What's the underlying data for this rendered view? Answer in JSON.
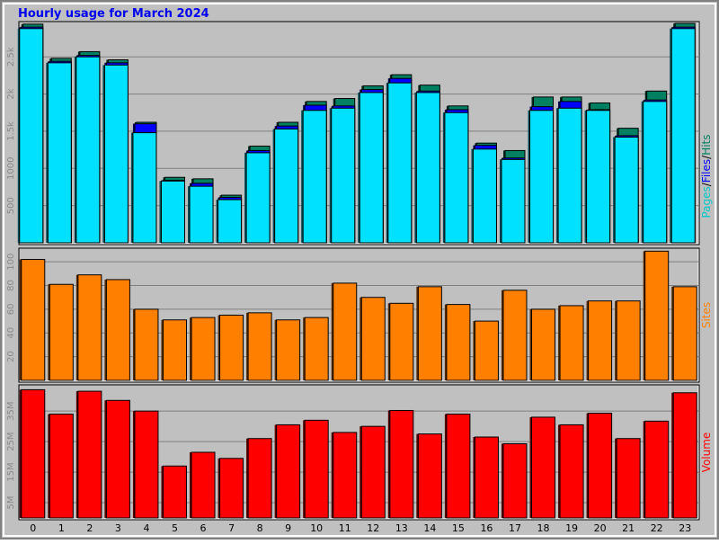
{
  "chart_data": {
    "type": "bar",
    "title": "Hourly usage for March 2024",
    "categories": [
      "0",
      "1",
      "2",
      "3",
      "4",
      "5",
      "6",
      "7",
      "8",
      "9",
      "10",
      "11",
      "12",
      "13",
      "14",
      "15",
      "16",
      "17",
      "18",
      "19",
      "20",
      "21",
      "22",
      "23"
    ],
    "panels": [
      {
        "id": "top",
        "ylabel_parts": [
          {
            "text": "Pages",
            "color": "#00c8c8"
          },
          {
            "text": "/",
            "color": "#000000"
          },
          {
            "text": "Files",
            "color": "#0000ff"
          },
          {
            "text": "/",
            "color": "#000000"
          },
          {
            "text": "Hits",
            "color": "#008060"
          }
        ],
        "yticks": [
          {
            "label": "500",
            "value": 500
          },
          {
            "label": "1000",
            "value": 1000
          },
          {
            "label": "1.5k",
            "value": 1500
          },
          {
            "label": "2k",
            "value": 2000
          },
          {
            "label": "2.5k",
            "value": 2500
          }
        ],
        "ylim": [
          0,
          2950
        ],
        "grid": true,
        "series": [
          {
            "name": "Hits",
            "color": "#008060",
            "values": [
              2940,
              2480,
              2570,
              2460,
              1620,
              880,
              860,
              640,
              1300,
              1620,
              1900,
              1940,
              2110,
              2260,
              2120,
              1840,
              1340,
              1240,
              1960,
              1960,
              1880,
              1540,
              2040,
              2950
            ]
          },
          {
            "name": "Files",
            "color": "#0000ff",
            "values": [
              2900,
              2440,
              2520,
              2420,
              1600,
              840,
              800,
              610,
              1240,
              1570,
              1850,
              1840,
              2060,
              2210,
              2040,
              1790,
              1310,
              1140,
              1830,
              1900,
              1790,
              1440,
              1920,
              2900
            ]
          },
          {
            "name": "Pages",
            "color": "#00e0ff",
            "values": [
              2880,
              2420,
              2500,
              2390,
              1480,
              830,
              760,
              580,
              1210,
              1530,
              1780,
              1810,
              2020,
              2150,
              2020,
              1750,
              1260,
              1120,
              1780,
              1810,
              1780,
              1420,
              1900,
              2880
            ]
          }
        ]
      },
      {
        "id": "middle",
        "ylabel_parts": [
          {
            "text": "Sites",
            "color": "#ff8000"
          }
        ],
        "yticks": [
          {
            "label": "20",
            "value": 20
          },
          {
            "label": "40",
            "value": 40
          },
          {
            "label": "60",
            "value": 60
          },
          {
            "label": "80",
            "value": 80
          },
          {
            "label": "100",
            "value": 100
          }
        ],
        "ylim": [
          0,
          110
        ],
        "grid": true,
        "series": [
          {
            "name": "Sites",
            "color": "#ff8000",
            "values": [
              102,
              81,
              89,
              85,
              60,
              51,
              53,
              55,
              57,
              51,
              53,
              82,
              70,
              65,
              79,
              64,
              50,
              76,
              60,
              63,
              67,
              67,
              109,
              79
            ]
          }
        ]
      },
      {
        "id": "bottom",
        "ylabel_parts": [
          {
            "text": "Volume",
            "color": "#ff0000"
          }
        ],
        "yticks": [
          {
            "label": "5M",
            "value": 5
          },
          {
            "label": "15M",
            "value": 15
          },
          {
            "label": "25M",
            "value": 25
          },
          {
            "label": "35M",
            "value": 35
          }
        ],
        "ylim": [
          0,
          43
        ],
        "grid": true,
        "series": [
          {
            "name": "Volume",
            "color": "#ff0000",
            "values": [
              42,
              34,
              41.5,
              38.5,
              35,
              17,
              21.5,
              19.5,
              26,
              30.5,
              32,
              28,
              30,
              35.2,
              27.5,
              34,
              26.5,
              24.3,
              33,
              30.5,
              34.3,
              26,
              31.7,
              41
            ]
          }
        ]
      }
    ]
  }
}
